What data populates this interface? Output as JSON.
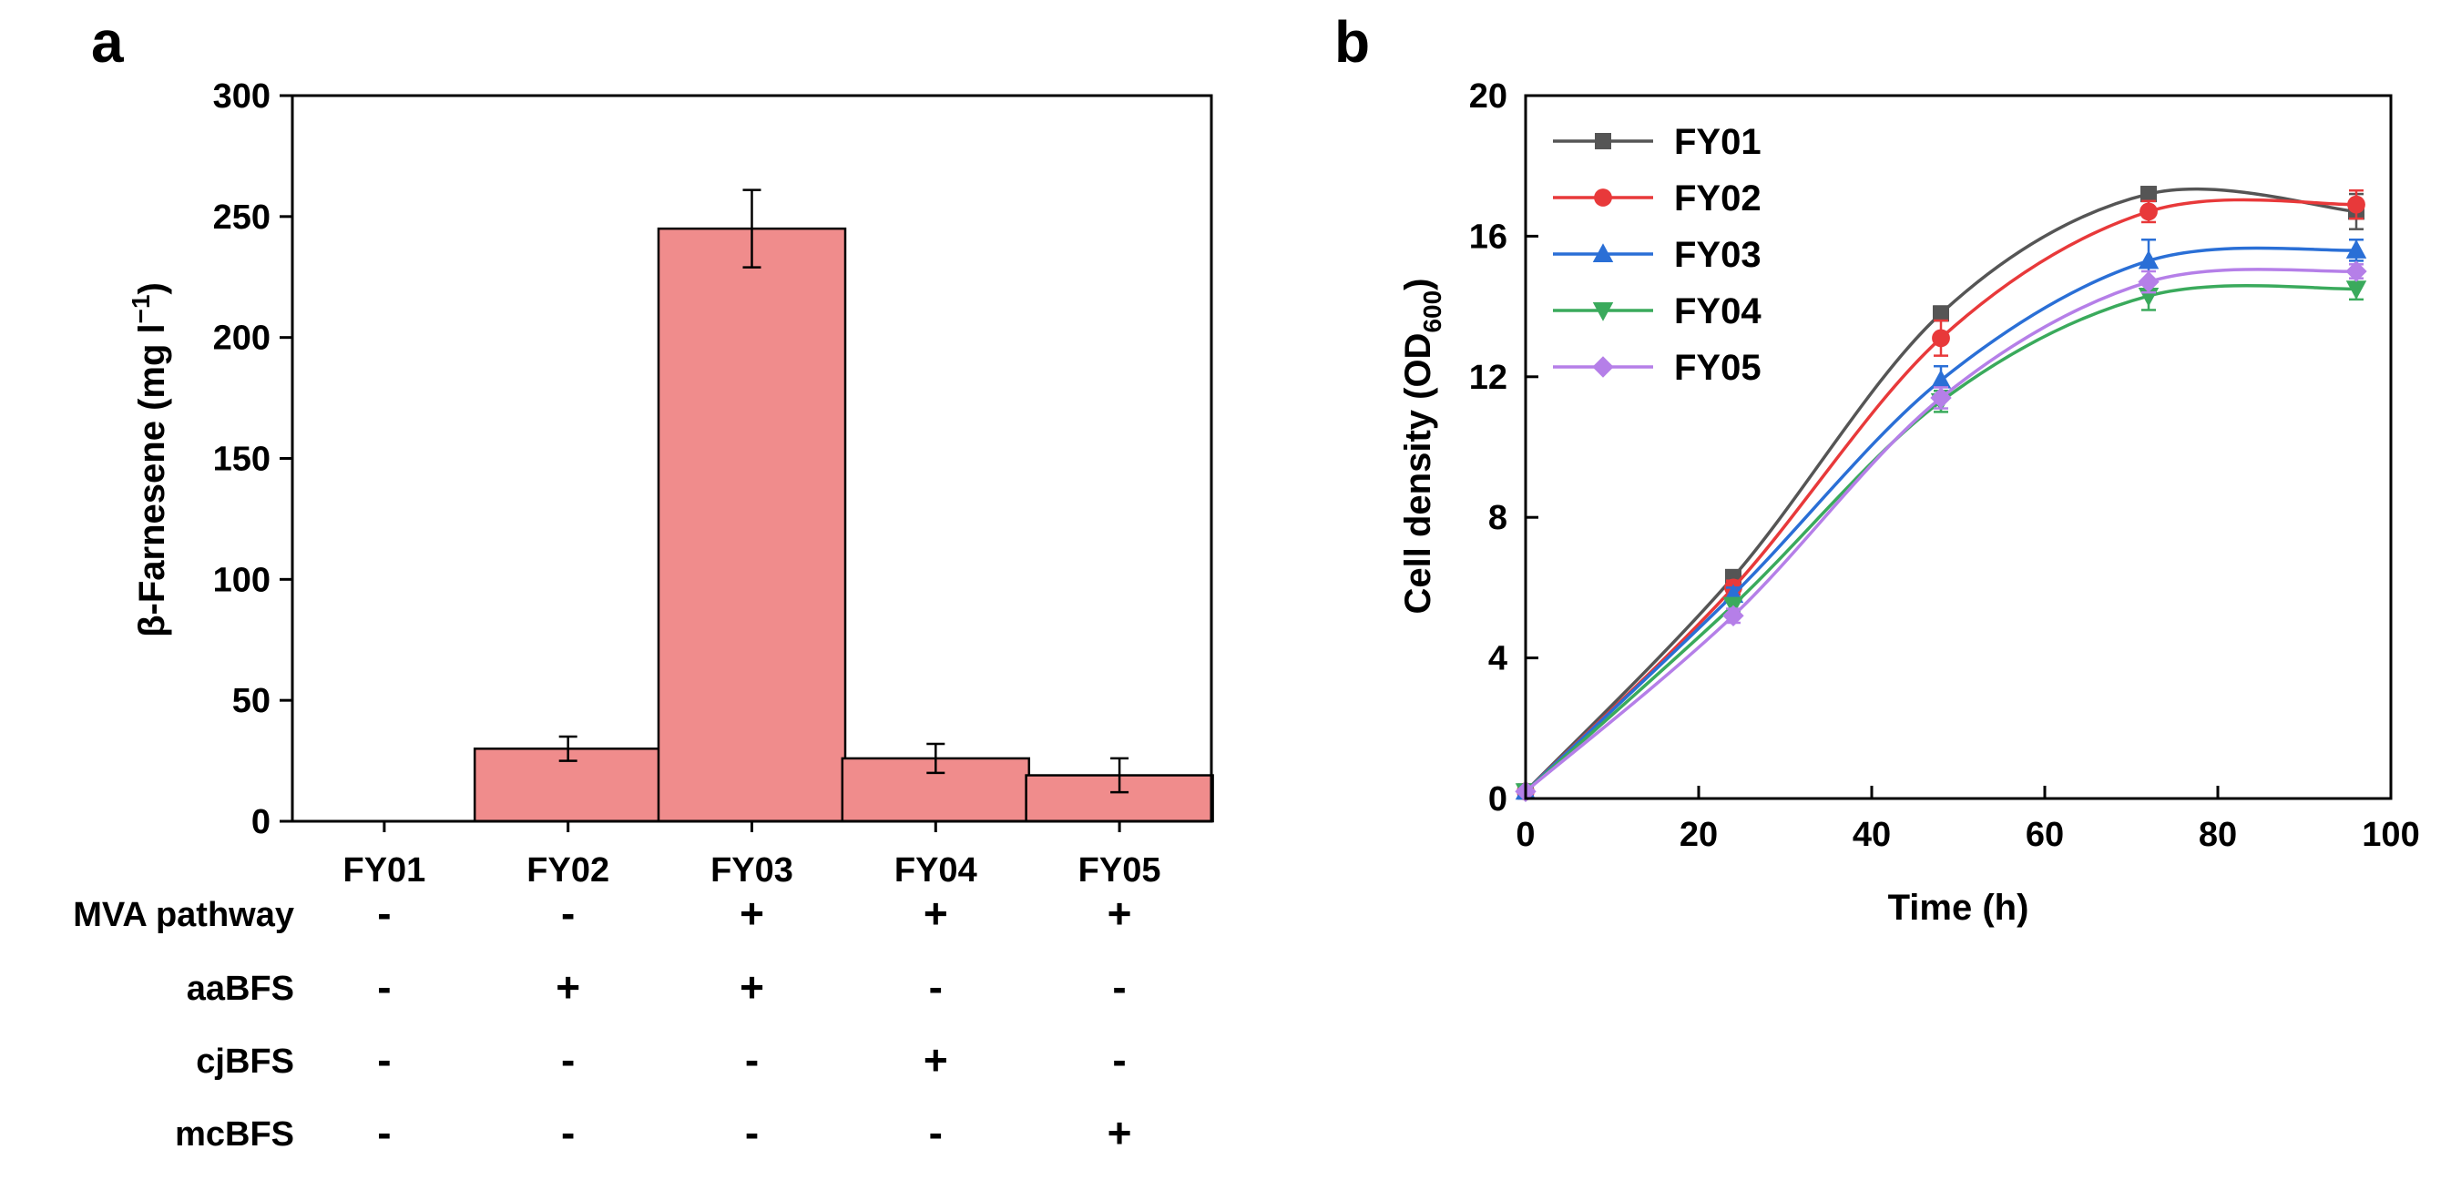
{
  "chart_data": [
    {
      "panel": "a",
      "type": "bar",
      "ylabel": "β-Farnesene (mg l",
      "ylabel_sup": "−1",
      "ylabel_close": ")",
      "ylim": [
        0,
        300
      ],
      "yticks": [
        0,
        50,
        100,
        150,
        200,
        250,
        300
      ],
      "categories": [
        "FY01",
        "FY02",
        "FY03",
        "FY04",
        "FY05"
      ],
      "values": [
        0,
        30,
        245,
        26,
        19
      ],
      "errors": [
        0,
        5,
        16,
        6,
        7
      ],
      "bar_color": "#f08c8c",
      "conditions": [
        {
          "name": "MVA pathway",
          "marks": [
            "-",
            "-",
            "+",
            "+",
            "+"
          ]
        },
        {
          "name": "aaBFS",
          "marks": [
            "-",
            "+",
            "+",
            "-",
            "-"
          ]
        },
        {
          "name": "cjBFS",
          "marks": [
            "-",
            "-",
            "-",
            "+",
            "-"
          ]
        },
        {
          "name": "mcBFS",
          "marks": [
            "-",
            "-",
            "-",
            "-",
            "+"
          ]
        }
      ]
    },
    {
      "panel": "b",
      "type": "line",
      "xlabel": "Time (h)",
      "ylabel": "Cell density (OD",
      "ylabel_sub": "600",
      "ylabel_close": ")",
      "xlim": [
        0,
        100
      ],
      "ylim": [
        0,
        20
      ],
      "xticks": [
        0,
        20,
        40,
        60,
        80,
        100
      ],
      "yticks": [
        0,
        4,
        8,
        12,
        16,
        20
      ],
      "x": [
        0,
        24,
        48,
        72,
        96
      ],
      "series": [
        {
          "name": "FY01",
          "marker": "square",
          "color": "#555555",
          "values": [
            0.2,
            6.3,
            13.8,
            17.2,
            16.7
          ],
          "errors": [
            0,
            0.1,
            0.2,
            0.2,
            0.5
          ]
        },
        {
          "name": "FY02",
          "marker": "circle",
          "color": "#e8393a",
          "values": [
            0.2,
            6.0,
            13.1,
            16.7,
            16.9
          ],
          "errors": [
            0,
            0.2,
            0.5,
            0.3,
            0.4
          ]
        },
        {
          "name": "FY03",
          "marker": "triangle-up",
          "color": "#2a6fd6",
          "values": [
            0.2,
            5.8,
            11.9,
            15.3,
            15.6
          ],
          "errors": [
            0,
            0.2,
            0.4,
            0.6,
            0.3
          ]
        },
        {
          "name": "FY04",
          "marker": "triangle-down",
          "color": "#3aaa5c",
          "values": [
            0.2,
            5.5,
            11.3,
            14.3,
            14.5
          ],
          "errors": [
            0,
            0.2,
            0.3,
            0.4,
            0.3
          ]
        },
        {
          "name": "FY05",
          "marker": "diamond",
          "color": "#b57fe8",
          "values": [
            0.2,
            5.2,
            11.4,
            14.7,
            15.0
          ],
          "errors": [
            0,
            0.2,
            0.3,
            0.3,
            0.2
          ]
        }
      ]
    }
  ],
  "panels": {
    "a_label": "a",
    "b_label": "b"
  }
}
